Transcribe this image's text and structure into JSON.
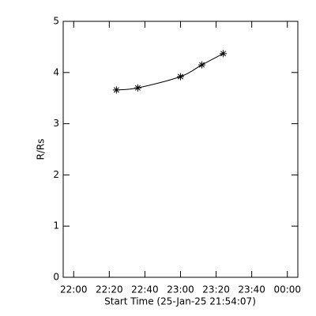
{
  "chart_data": {
    "type": "line",
    "xlabel": "Start Time (25-Jan-25 21:54:07)",
    "ylabel": "R/Rs",
    "x": [
      "22:24",
      "22:36",
      "23:00",
      "23:12",
      "23:24"
    ],
    "values": [
      3.66,
      3.7,
      3.92,
      4.15,
      4.37
    ],
    "color": "#000000",
    "marker": "asterisk",
    "xlim": [
      "21:54:07",
      "00:05:53"
    ],
    "xticks": [
      "22:00",
      "22:20",
      "22:40",
      "23:00",
      "23:20",
      "23:40",
      "00:00"
    ],
    "ylim": [
      0,
      5
    ],
    "yticks": [
      0,
      1,
      2,
      3,
      4,
      5
    ]
  }
}
